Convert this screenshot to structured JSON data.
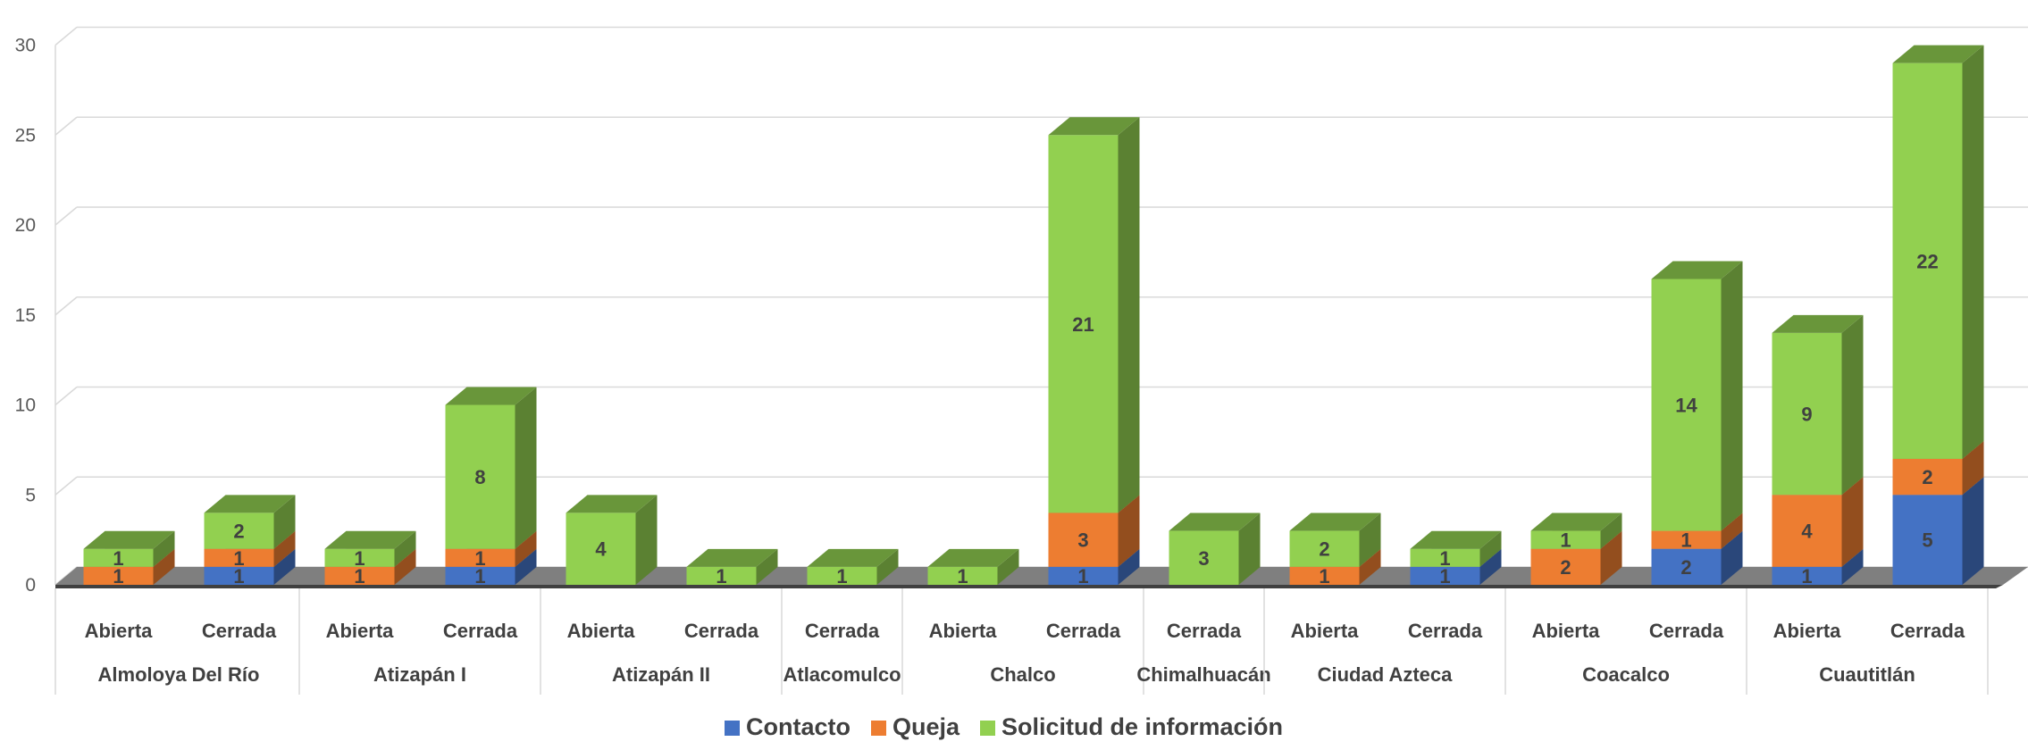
{
  "chart_data": {
    "type": "bar",
    "stacked": true,
    "three_d": true,
    "title": "",
    "xlabel": "",
    "ylabel": "",
    "ylim": [
      0,
      30
    ],
    "yticks": [
      0,
      5,
      10,
      15,
      20,
      25,
      30
    ],
    "grid": true,
    "legend_position": "bottom",
    "groups": [
      {
        "name": "Almoloya Del Río",
        "categories": [
          "Abierta",
          "Cerrada"
        ]
      },
      {
        "name": "Atizapán I",
        "categories": [
          "Abierta",
          "Cerrada"
        ]
      },
      {
        "name": "Atizapán II",
        "categories": [
          "Abierta",
          "Cerrada"
        ]
      },
      {
        "name": "Atlacomulco",
        "categories": [
          "Cerrada"
        ]
      },
      {
        "name": "Chalco",
        "categories": [
          "Abierta",
          "Cerrada"
        ]
      },
      {
        "name": "Chimalhuacán",
        "categories": [
          "Cerrada"
        ]
      },
      {
        "name": "Ciudad Azteca",
        "categories": [
          "Abierta",
          "Cerrada"
        ]
      },
      {
        "name": "Coacalco",
        "categories": [
          "Abierta",
          "Cerrada"
        ]
      },
      {
        "name": "Cuautitlán",
        "categories": [
          "Abierta",
          "Cerrada"
        ]
      }
    ],
    "series": [
      {
        "name": "Contacto",
        "color": "#4472C4",
        "values": [
          null,
          1,
          null,
          1,
          null,
          null,
          null,
          null,
          1,
          null,
          null,
          1,
          null,
          2,
          1,
          5
        ]
      },
      {
        "name": "Queja",
        "color": "#ED7D31",
        "values": [
          1,
          1,
          1,
          1,
          null,
          null,
          null,
          null,
          3,
          null,
          1,
          null,
          2,
          1,
          4,
          2
        ]
      },
      {
        "name": "Solicitud de información",
        "color": "#92D050",
        "values": [
          1,
          2,
          1,
          8,
          4,
          1,
          1,
          1,
          21,
          3,
          2,
          1,
          1,
          14,
          9,
          22
        ]
      }
    ]
  }
}
